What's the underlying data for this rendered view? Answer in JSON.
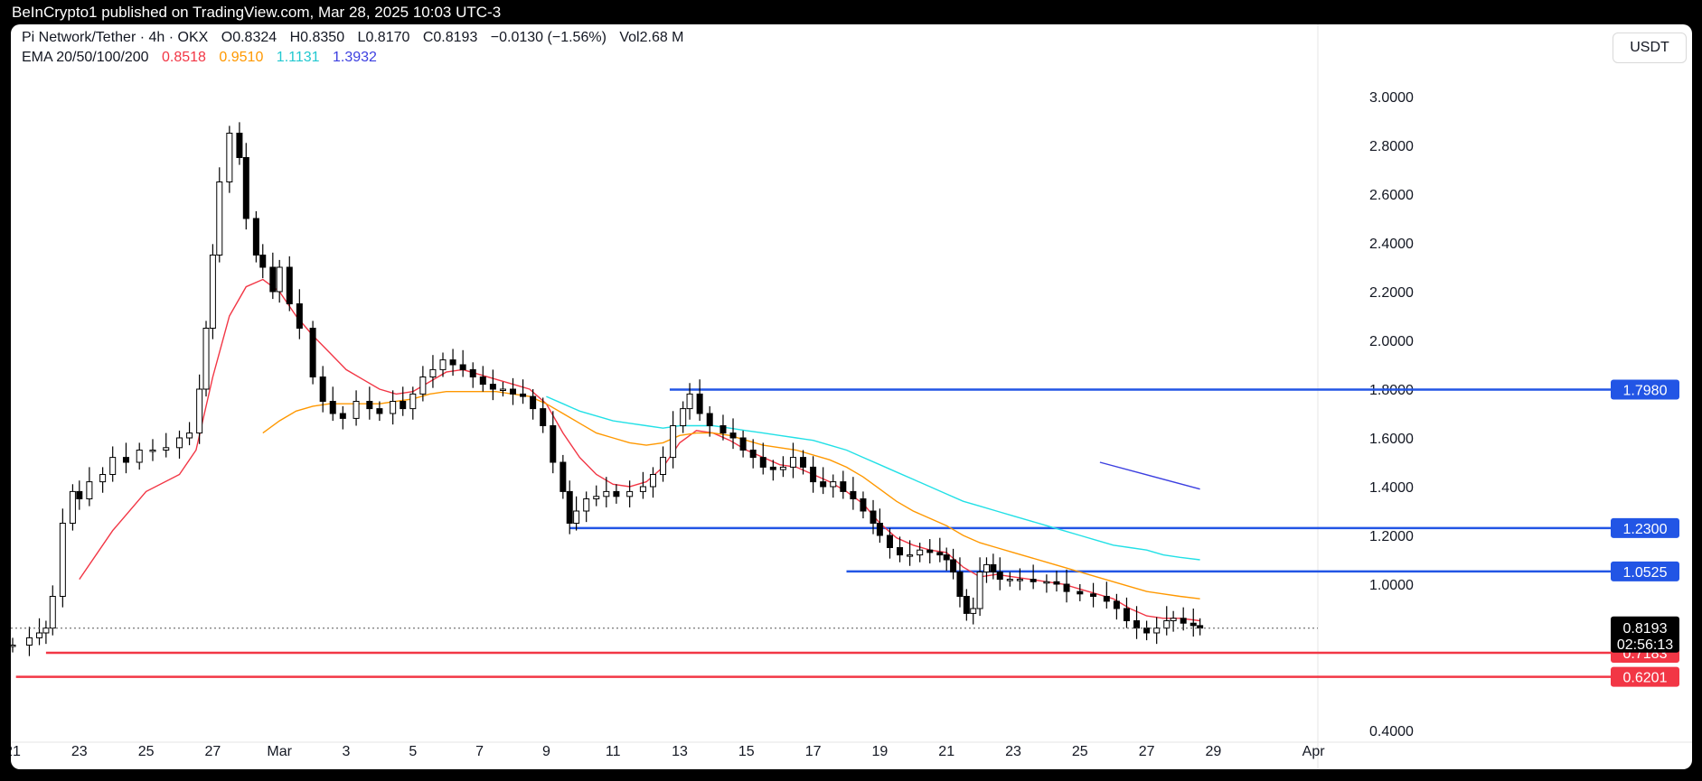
{
  "header": {
    "publisher": "BeInCrypto1 published on TradingView.com, Mar 28, 2025 10:03 UTC-3"
  },
  "legend": {
    "symbol": "Pi Network/Tether · 4h · OKX",
    "ohlc": [
      {
        "label": "O",
        "value": "0.8324"
      },
      {
        "label": "H",
        "value": "0.8350"
      },
      {
        "label": "L",
        "value": "0.8170"
      },
      {
        "label": "C",
        "value": "0.8193"
      }
    ],
    "change": "−0.0130 (−1.56%)",
    "vol_label": "Vol",
    "vol_value": "2.68 M",
    "ema_label": "EMA 20/50/100/200",
    "ema_values": [
      "0.8518",
      "0.9510",
      "1.1131",
      "1.3932"
    ]
  },
  "currency_button": "USDT",
  "price_marker": {
    "price": "0.8193",
    "countdown": "02:56:13"
  },
  "colors": {
    "up": "#ffffff",
    "down": "#000000",
    "wick": "#000000",
    "ema20": "#f23645",
    "ema50": "#ff9800",
    "ema100": "#22e0e6",
    "ema200": "#3c3fe0",
    "resistance": "#2255e5",
    "support": "#f23645",
    "label_black": "#000000"
  },
  "chart_data": {
    "type": "candlestick",
    "timeframe": "4h",
    "y_axis": {
      "range": [
        0.4,
        3.05
      ],
      "tick_labels": [
        "3.0000",
        "2.8000",
        "2.6000",
        "2.4000",
        "2.2000",
        "2.0000",
        "1.8000",
        "1.6000",
        "1.4000",
        "1.2000",
        "1.0000",
        "0.4000"
      ]
    },
    "x_axis": {
      "tick_labels": [
        {
          "label": "21",
          "day": 0
        },
        {
          "label": "23",
          "day": 2
        },
        {
          "label": "25",
          "day": 4
        },
        {
          "label": "27",
          "day": 6
        },
        {
          "label": "Mar",
          "day": 8
        },
        {
          "label": "3",
          "day": 10
        },
        {
          "label": "5",
          "day": 12
        },
        {
          "label": "7",
          "day": 14
        },
        {
          "label": "9",
          "day": 16
        },
        {
          "label": "11",
          "day": 18
        },
        {
          "label": "13",
          "day": 20
        },
        {
          "label": "15",
          "day": 22
        },
        {
          "label": "17",
          "day": 24
        },
        {
          "label": "19",
          "day": 26
        },
        {
          "label": "21",
          "day": 28
        },
        {
          "label": "23",
          "day": 30
        },
        {
          "label": "25",
          "day": 32
        },
        {
          "label": "27",
          "day": 34
        },
        {
          "label": "29",
          "day": 36
        },
        {
          "label": "Apr",
          "day": 39
        }
      ],
      "range_days": [
        0,
        39.9
      ]
    },
    "closes": [
      [
        0,
        0.75
      ],
      [
        0.5,
        0.78
      ],
      [
        0.8,
        0.8
      ],
      [
        1.0,
        0.82
      ],
      [
        1.2,
        0.95
      ],
      [
        1.5,
        1.25
      ],
      [
        1.8,
        1.38
      ],
      [
        2.0,
        1.35
      ],
      [
        2.3,
        1.42
      ],
      [
        2.7,
        1.45
      ],
      [
        3.0,
        1.52
      ],
      [
        3.4,
        1.5
      ],
      [
        3.8,
        1.55
      ],
      [
        4.2,
        1.55
      ],
      [
        4.6,
        1.56
      ],
      [
        5.0,
        1.6
      ],
      [
        5.3,
        1.62
      ],
      [
        5.6,
        1.8
      ],
      [
        5.8,
        2.05
      ],
      [
        6.0,
        2.35
      ],
      [
        6.2,
        2.65
      ],
      [
        6.5,
        2.85
      ],
      [
        6.8,
        2.75
      ],
      [
        7.0,
        2.5
      ],
      [
        7.3,
        2.35
      ],
      [
        7.5,
        2.3
      ],
      [
        7.8,
        2.2
      ],
      [
        8.0,
        2.3
      ],
      [
        8.3,
        2.15
      ],
      [
        8.6,
        2.05
      ],
      [
        9.0,
        1.85
      ],
      [
        9.3,
        1.75
      ],
      [
        9.6,
        1.7
      ],
      [
        9.9,
        1.68
      ],
      [
        10.3,
        1.75
      ],
      [
        10.7,
        1.72
      ],
      [
        11.0,
        1.7
      ],
      [
        11.4,
        1.75
      ],
      [
        11.7,
        1.72
      ],
      [
        12.0,
        1.78
      ],
      [
        12.3,
        1.85
      ],
      [
        12.6,
        1.88
      ],
      [
        12.9,
        1.92
      ],
      [
        13.2,
        1.9
      ],
      [
        13.5,
        1.88
      ],
      [
        13.8,
        1.85
      ],
      [
        14.1,
        1.82
      ],
      [
        14.4,
        1.8
      ],
      [
        14.7,
        1.8
      ],
      [
        15.0,
        1.78
      ],
      [
        15.3,
        1.77
      ],
      [
        15.6,
        1.72
      ],
      [
        15.9,
        1.65
      ],
      [
        16.2,
        1.5
      ],
      [
        16.5,
        1.38
      ],
      [
        16.7,
        1.25
      ],
      [
        16.9,
        1.3
      ],
      [
        17.2,
        1.35
      ],
      [
        17.5,
        1.36
      ],
      [
        17.8,
        1.38
      ],
      [
        18.1,
        1.36
      ],
      [
        18.5,
        1.38
      ],
      [
        18.9,
        1.4
      ],
      [
        19.2,
        1.45
      ],
      [
        19.5,
        1.52
      ],
      [
        19.8,
        1.65
      ],
      [
        20.1,
        1.72
      ],
      [
        20.3,
        1.78
      ],
      [
        20.6,
        1.7
      ],
      [
        20.9,
        1.65
      ],
      [
        21.3,
        1.62
      ],
      [
        21.6,
        1.6
      ],
      [
        21.9,
        1.55
      ],
      [
        22.2,
        1.52
      ],
      [
        22.5,
        1.48
      ],
      [
        22.8,
        1.47
      ],
      [
        23.1,
        1.48
      ],
      [
        23.4,
        1.52
      ],
      [
        23.7,
        1.48
      ],
      [
        24.0,
        1.42
      ],
      [
        24.3,
        1.4
      ],
      [
        24.6,
        1.42
      ],
      [
        24.9,
        1.38
      ],
      [
        25.2,
        1.35
      ],
      [
        25.5,
        1.3
      ],
      [
        25.8,
        1.25
      ],
      [
        26.0,
        1.2
      ],
      [
        26.3,
        1.15
      ],
      [
        26.6,
        1.12
      ],
      [
        26.9,
        1.12
      ],
      [
        27.2,
        1.14
      ],
      [
        27.5,
        1.13
      ],
      [
        27.8,
        1.12
      ],
      [
        28.0,
        1.1
      ],
      [
        28.2,
        1.05
      ],
      [
        28.4,
        0.95
      ],
      [
        28.6,
        0.88
      ],
      [
        28.8,
        0.9
      ],
      [
        29.0,
        1.05
      ],
      [
        29.2,
        1.08
      ],
      [
        29.4,
        1.05
      ],
      [
        29.6,
        1.02
      ],
      [
        29.9,
        1.02
      ],
      [
        30.2,
        1.02
      ],
      [
        30.6,
        1.01
      ],
      [
        31.0,
        1.01
      ],
      [
        31.3,
        1.0
      ],
      [
        31.6,
        0.97
      ],
      [
        32.0,
        0.96
      ],
      [
        32.4,
        0.95
      ],
      [
        32.8,
        0.93
      ],
      [
        33.1,
        0.9
      ],
      [
        33.4,
        0.85
      ],
      [
        33.7,
        0.82
      ],
      [
        34.0,
        0.8
      ],
      [
        34.3,
        0.82
      ],
      [
        34.6,
        0.85
      ],
      [
        34.8,
        0.86
      ],
      [
        35.1,
        0.84
      ],
      [
        35.4,
        0.83
      ],
      [
        35.6,
        0.82
      ]
    ],
    "series": [
      {
        "name": "EMA 20",
        "points": [
          [
            2.0,
            1.02
          ],
          [
            3.0,
            1.22
          ],
          [
            4.0,
            1.38
          ],
          [
            5.0,
            1.45
          ],
          [
            5.5,
            1.55
          ],
          [
            6.0,
            1.85
          ],
          [
            6.5,
            2.1
          ],
          [
            7.0,
            2.22
          ],
          [
            7.5,
            2.25
          ],
          [
            8.0,
            2.2
          ],
          [
            8.5,
            2.1
          ],
          [
            9.0,
            2.02
          ],
          [
            9.5,
            1.95
          ],
          [
            10.0,
            1.88
          ],
          [
            10.5,
            1.84
          ],
          [
            11.0,
            1.8
          ],
          [
            11.5,
            1.78
          ],
          [
            12.0,
            1.79
          ],
          [
            12.5,
            1.83
          ],
          [
            13.0,
            1.87
          ],
          [
            13.5,
            1.88
          ],
          [
            14.0,
            1.86
          ],
          [
            14.5,
            1.84
          ],
          [
            15.0,
            1.82
          ],
          [
            15.5,
            1.8
          ],
          [
            16.0,
            1.74
          ],
          [
            16.5,
            1.62
          ],
          [
            17.0,
            1.52
          ],
          [
            17.5,
            1.45
          ],
          [
            18.0,
            1.41
          ],
          [
            18.5,
            1.4
          ],
          [
            19.0,
            1.42
          ],
          [
            19.5,
            1.48
          ],
          [
            20.0,
            1.58
          ],
          [
            20.5,
            1.63
          ],
          [
            21.0,
            1.62
          ],
          [
            21.5,
            1.59
          ],
          [
            22.0,
            1.55
          ],
          [
            22.5,
            1.52
          ],
          [
            23.0,
            1.49
          ],
          [
            23.5,
            1.48
          ],
          [
            24.0,
            1.45
          ],
          [
            24.5,
            1.42
          ],
          [
            25.0,
            1.38
          ],
          [
            25.5,
            1.33
          ],
          [
            26.0,
            1.25
          ],
          [
            26.5,
            1.19
          ],
          [
            27.0,
            1.16
          ],
          [
            27.5,
            1.14
          ],
          [
            28.0,
            1.13
          ],
          [
            28.5,
            1.07
          ],
          [
            29.0,
            1.03
          ],
          [
            29.5,
            1.04
          ],
          [
            30.0,
            1.03
          ],
          [
            30.5,
            1.02
          ],
          [
            31.0,
            1.01
          ],
          [
            31.5,
            1.0
          ],
          [
            32.0,
            0.98
          ],
          [
            32.5,
            0.96
          ],
          [
            33.0,
            0.94
          ],
          [
            33.5,
            0.9
          ],
          [
            34.0,
            0.87
          ],
          [
            34.5,
            0.86
          ],
          [
            35.0,
            0.86
          ],
          [
            35.6,
            0.85
          ]
        ]
      },
      {
        "name": "EMA 50",
        "points": [
          [
            7.5,
            1.62
          ],
          [
            8.0,
            1.67
          ],
          [
            8.5,
            1.71
          ],
          [
            9.0,
            1.73
          ],
          [
            9.5,
            1.74
          ],
          [
            10.0,
            1.74
          ],
          [
            10.5,
            1.74
          ],
          [
            11.0,
            1.74
          ],
          [
            11.5,
            1.75
          ],
          [
            12.0,
            1.76
          ],
          [
            12.5,
            1.78
          ],
          [
            13.0,
            1.79
          ],
          [
            13.5,
            1.79
          ],
          [
            14.0,
            1.79
          ],
          [
            14.5,
            1.79
          ],
          [
            15.0,
            1.78
          ],
          [
            15.5,
            1.77
          ],
          [
            16.0,
            1.74
          ],
          [
            16.5,
            1.7
          ],
          [
            17.0,
            1.66
          ],
          [
            17.5,
            1.62
          ],
          [
            18.0,
            1.6
          ],
          [
            18.5,
            1.58
          ],
          [
            19.0,
            1.57
          ],
          [
            19.5,
            1.58
          ],
          [
            20.0,
            1.61
          ],
          [
            20.5,
            1.62
          ],
          [
            21.0,
            1.62
          ],
          [
            21.5,
            1.61
          ],
          [
            22.0,
            1.59
          ],
          [
            22.5,
            1.57
          ],
          [
            23.0,
            1.56
          ],
          [
            23.5,
            1.55
          ],
          [
            24.0,
            1.53
          ],
          [
            24.5,
            1.51
          ],
          [
            25.0,
            1.48
          ],
          [
            25.5,
            1.44
          ],
          [
            26.0,
            1.39
          ],
          [
            26.5,
            1.34
          ],
          [
            27.0,
            1.3
          ],
          [
            27.5,
            1.27
          ],
          [
            28.0,
            1.24
          ],
          [
            28.5,
            1.2
          ],
          [
            29.0,
            1.17
          ],
          [
            29.5,
            1.15
          ],
          [
            30.0,
            1.13
          ],
          [
            30.5,
            1.11
          ],
          [
            31.0,
            1.09
          ],
          [
            31.5,
            1.07
          ],
          [
            32.0,
            1.05
          ],
          [
            32.5,
            1.03
          ],
          [
            33.0,
            1.01
          ],
          [
            33.5,
            0.99
          ],
          [
            34.0,
            0.97
          ],
          [
            34.5,
            0.96
          ],
          [
            35.0,
            0.95
          ],
          [
            35.6,
            0.94
          ]
        ]
      },
      {
        "name": "EMA 100",
        "points": [
          [
            16.0,
            1.77
          ],
          [
            16.5,
            1.74
          ],
          [
            17.0,
            1.71
          ],
          [
            17.5,
            1.69
          ],
          [
            18.0,
            1.67
          ],
          [
            18.5,
            1.66
          ],
          [
            19.0,
            1.65
          ],
          [
            19.5,
            1.64
          ],
          [
            20.0,
            1.65
          ],
          [
            20.5,
            1.65
          ],
          [
            21.0,
            1.65
          ],
          [
            21.5,
            1.64
          ],
          [
            22.0,
            1.63
          ],
          [
            22.5,
            1.62
          ],
          [
            23.0,
            1.61
          ],
          [
            23.5,
            1.6
          ],
          [
            24.0,
            1.59
          ],
          [
            24.5,
            1.57
          ],
          [
            25.0,
            1.55
          ],
          [
            25.5,
            1.52
          ],
          [
            26.0,
            1.49
          ],
          [
            26.5,
            1.46
          ],
          [
            27.0,
            1.43
          ],
          [
            27.5,
            1.4
          ],
          [
            28.0,
            1.37
          ],
          [
            28.5,
            1.34
          ],
          [
            29.0,
            1.32
          ],
          [
            29.5,
            1.3
          ],
          [
            30.0,
            1.28
          ],
          [
            30.5,
            1.26
          ],
          [
            31.0,
            1.24
          ],
          [
            31.5,
            1.22
          ],
          [
            32.0,
            1.2
          ],
          [
            32.5,
            1.18
          ],
          [
            33.0,
            1.16
          ],
          [
            33.5,
            1.15
          ],
          [
            34.0,
            1.14
          ],
          [
            34.5,
            1.12
          ],
          [
            35.0,
            1.11
          ],
          [
            35.6,
            1.1
          ]
        ]
      },
      {
        "name": "EMA 200",
        "points": [
          [
            32.6,
            1.5
          ],
          [
            35.6,
            1.39
          ]
        ]
      }
    ],
    "horizontal_levels": [
      {
        "price": "1.7980",
        "value": 1.798,
        "from_day": 19.7,
        "kind": "resistance"
      },
      {
        "price": "1.2300",
        "value": 1.23,
        "from_day": 16.7,
        "kind": "resistance"
      },
      {
        "price": "1.0525",
        "value": 1.0525,
        "from_day": 25.0,
        "kind": "resistance"
      },
      {
        "price": "0.7183",
        "value": 0.7183,
        "from_day": 1.0,
        "kind": "support"
      },
      {
        "price": "0.6201",
        "value": 0.6201,
        "from_day": 0.1,
        "kind": "support"
      }
    ],
    "last_price": 0.8193,
    "grid": false
  }
}
